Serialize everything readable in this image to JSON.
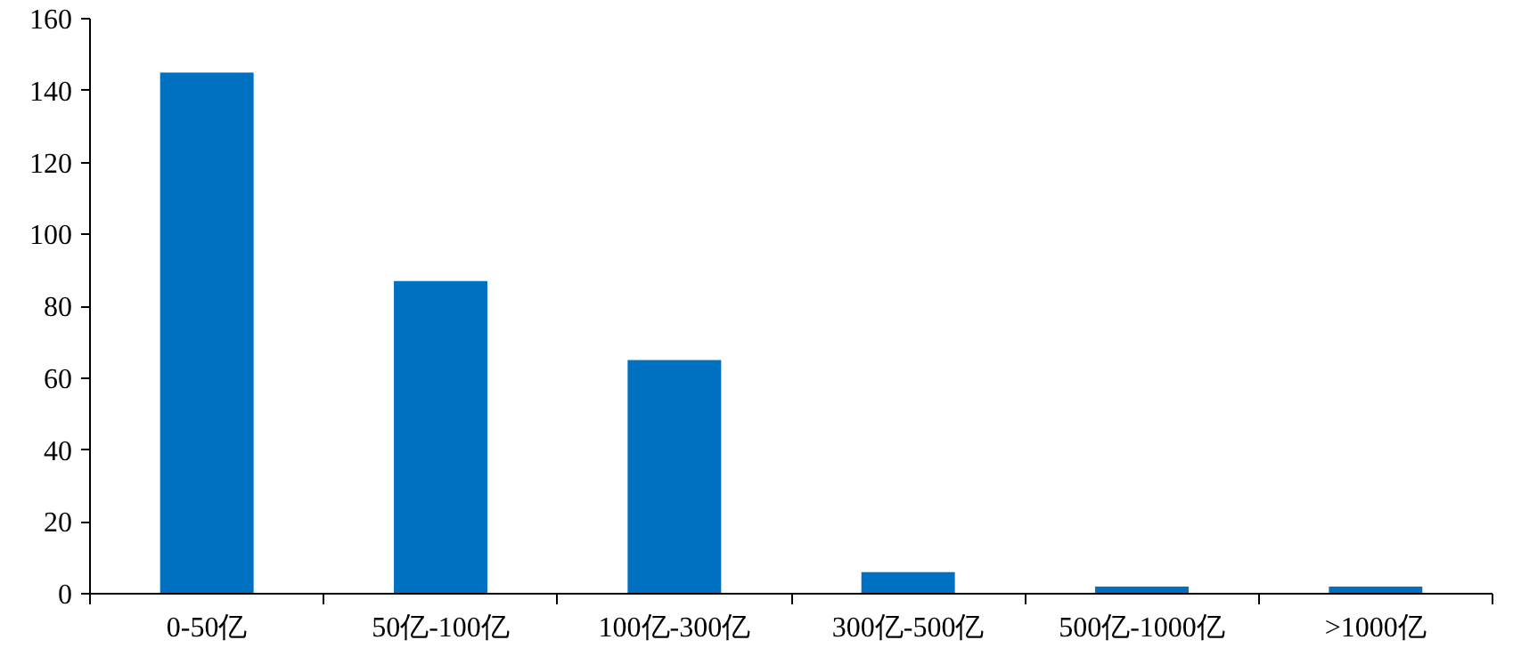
{
  "chart_data": {
    "type": "bar",
    "categories": [
      "0-50亿",
      "50亿-100亿",
      "100亿-300亿",
      "300亿-500亿",
      "500亿-1000亿",
      ">1000亿"
    ],
    "values": [
      145,
      87,
      65,
      6,
      2,
      2
    ],
    "color": "#0070c0",
    "ylim": [
      0,
      160
    ],
    "yticks": [
      0,
      20,
      40,
      60,
      80,
      100,
      120,
      140,
      160
    ],
    "grid": false
  }
}
